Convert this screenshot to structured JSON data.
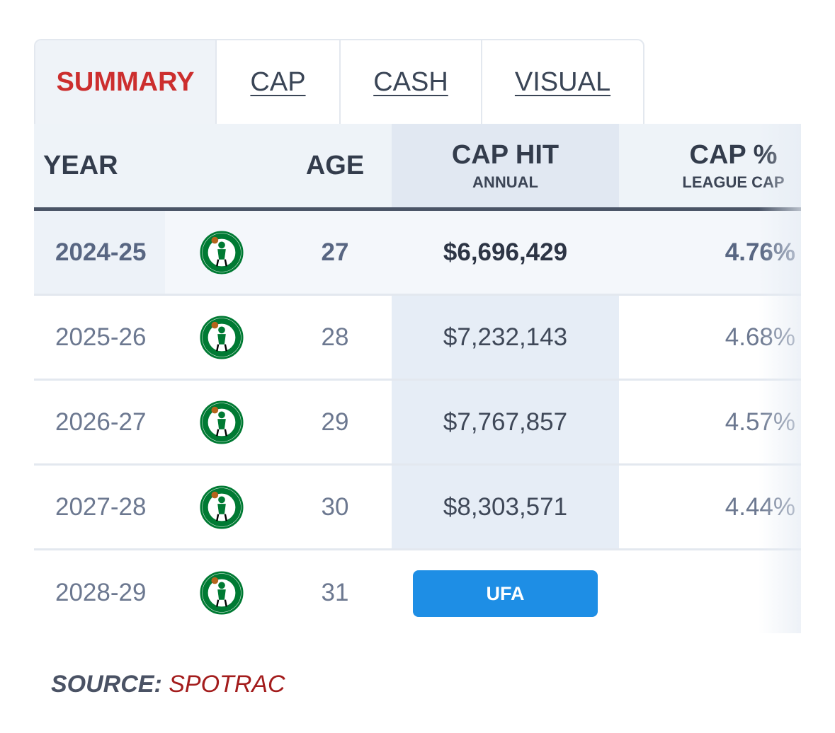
{
  "tabs": [
    {
      "label": "SUMMARY",
      "active": true
    },
    {
      "label": "CAP",
      "active": false
    },
    {
      "label": "CASH",
      "active": false
    },
    {
      "label": "VISUAL",
      "active": false
    }
  ],
  "table": {
    "headers": {
      "year": "YEAR",
      "age": "AGE",
      "cap_hit": "CAP HIT",
      "cap_hit_sub": "ANNUAL",
      "cap_pct": "CAP %",
      "cap_pct_sub": "LEAGUE CAP"
    },
    "rows": [
      {
        "year": "2024-25",
        "team_icon": "boston-celtics-logo-icon",
        "age": "27",
        "cap_hit": "$6,696,429",
        "cap_pct": "4.76%",
        "current": true
      },
      {
        "year": "2025-26",
        "team_icon": "boston-celtics-logo-icon",
        "age": "28",
        "cap_hit": "$7,232,143",
        "cap_pct": "4.68%"
      },
      {
        "year": "2026-27",
        "team_icon": "boston-celtics-logo-icon",
        "age": "29",
        "cap_hit": "$7,767,857",
        "cap_pct": "4.57%"
      },
      {
        "year": "2027-28",
        "team_icon": "boston-celtics-logo-icon",
        "age": "30",
        "cap_hit": "$8,303,571",
        "cap_pct": "4.44%"
      },
      {
        "year": "2028-29",
        "team_icon": "boston-celtics-logo-icon",
        "age": "31",
        "status": "UFA"
      }
    ]
  },
  "source": {
    "label": "SOURCE:",
    "name": "SPOTRAC"
  },
  "colors": {
    "active_tab": "#cc2e2e",
    "ufa_badge": "#1e8ee5",
    "source_name": "#a31c1c",
    "celtics_green": "#007a33"
  }
}
